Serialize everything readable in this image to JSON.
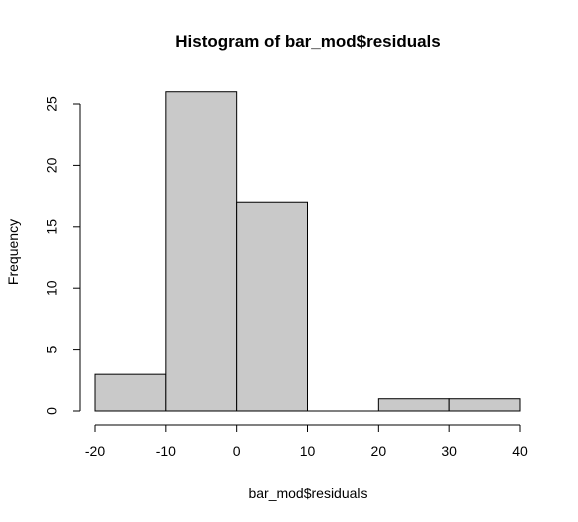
{
  "chart_data": {
    "type": "bar",
    "title": "Histogram of bar_mod$residuals",
    "xlabel": "bar_mod$residuals",
    "ylabel": "Frequency",
    "bins": [
      {
        "x0": -20,
        "x1": -10,
        "count": 3
      },
      {
        "x0": -10,
        "x1": 0,
        "count": 26
      },
      {
        "x0": 0,
        "x1": 10,
        "count": 17
      },
      {
        "x0": 10,
        "x1": 20,
        "count": 0
      },
      {
        "x0": 20,
        "x1": 30,
        "count": 1
      },
      {
        "x0": 30,
        "x1": 40,
        "count": 1
      }
    ],
    "xlim": [
      -20,
      40
    ],
    "ylim": [
      0,
      25
    ],
    "x_ticks": [
      "-20",
      "-10",
      "0",
      "10",
      "20",
      "30",
      "40"
    ],
    "y_ticks": [
      "0",
      "5",
      "10",
      "15",
      "20",
      "25"
    ],
    "bar_color": "#C9C9C9",
    "edge_color": "#000000",
    "grid": false,
    "legend": "none"
  }
}
